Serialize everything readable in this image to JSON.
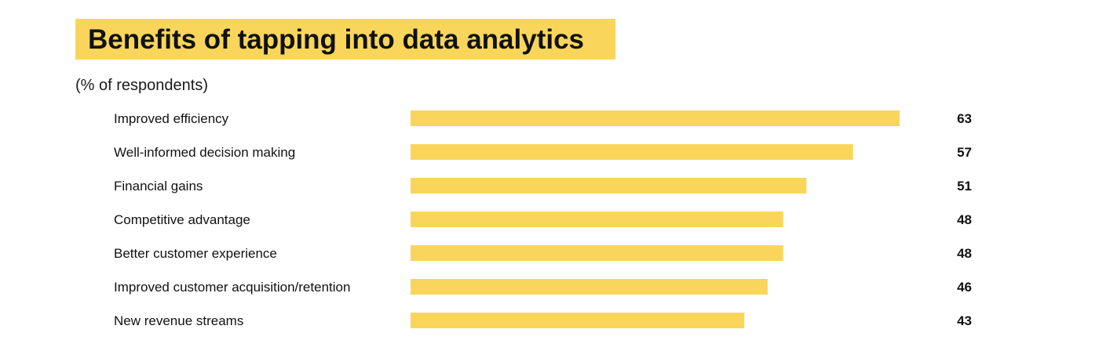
{
  "title": "Benefits of tapping into data analytics",
  "subtitle": "(% of respondents)",
  "colors": {
    "bar": "#f9d65b",
    "title_highlight": "#f9d65b",
    "text": "#111111"
  },
  "chart_data": {
    "type": "bar",
    "orientation": "horizontal",
    "title": "Benefits of tapping into data analytics",
    "subtitle": "(% of respondents)",
    "categories": [
      "Improved efficiency",
      "Well-informed decision making",
      "Financial gains",
      "Competitive advantage",
      "Better customer experience",
      "Improved customer acquisition/retention",
      "New revenue streams"
    ],
    "values": [
      63,
      57,
      51,
      48,
      48,
      46,
      43
    ],
    "value_labels": [
      "63",
      "57",
      "51",
      "48",
      "48",
      "46",
      "43"
    ],
    "xlim": [
      0,
      63
    ],
    "grid": false,
    "legend": "none"
  }
}
